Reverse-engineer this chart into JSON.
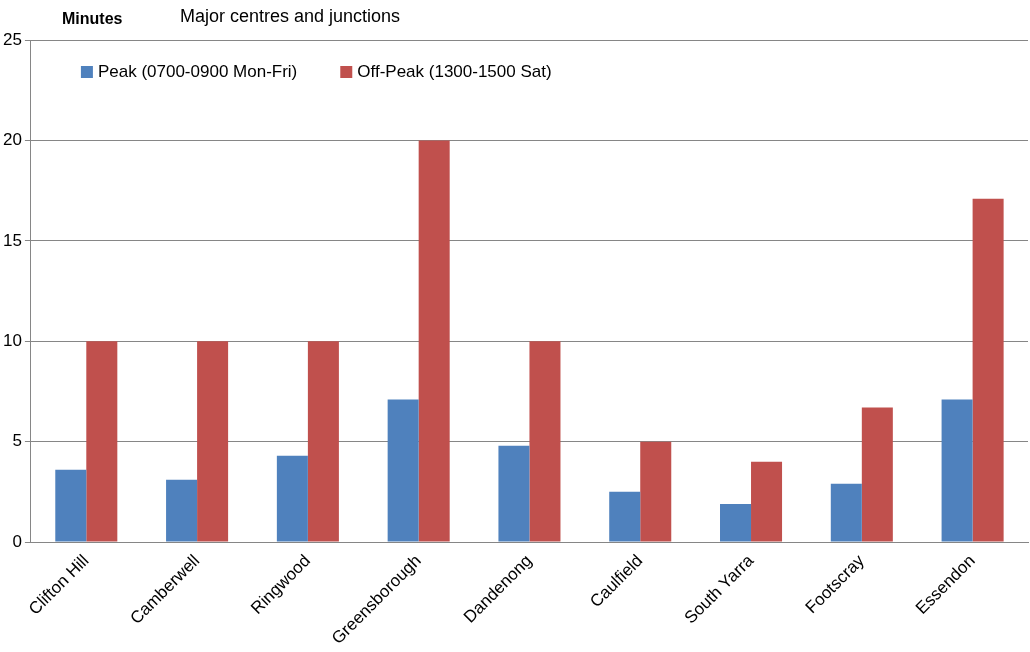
{
  "chart_data": {
    "type": "bar",
    "title": "Major centres and junctions",
    "ylabel": "Minutes",
    "categories": [
      "Clifton Hill",
      "Camberwell",
      "Ringwood",
      "Greensborough",
      "Dandenong",
      "Caulfield",
      "South Yarra",
      "Footscray",
      "Essendon"
    ],
    "series": [
      {
        "name": "Peak (0700-0900 Mon-Fri)",
        "color": "#4f81bd",
        "values": [
          3.6,
          3.1,
          4.3,
          7.1,
          4.8,
          2.5,
          1.9,
          2.9,
          7.1
        ]
      },
      {
        "name": "Off-Peak (1300-1500 Sat)",
        "color": "#c0504d",
        "values": [
          10,
          10,
          10,
          20,
          10,
          5,
          4,
          6.7,
          17.1
        ]
      }
    ],
    "ylim": [
      0,
      25
    ],
    "yticks": [
      0,
      5,
      10,
      15,
      20,
      25
    ],
    "grid": "y",
    "legend": "top left"
  }
}
